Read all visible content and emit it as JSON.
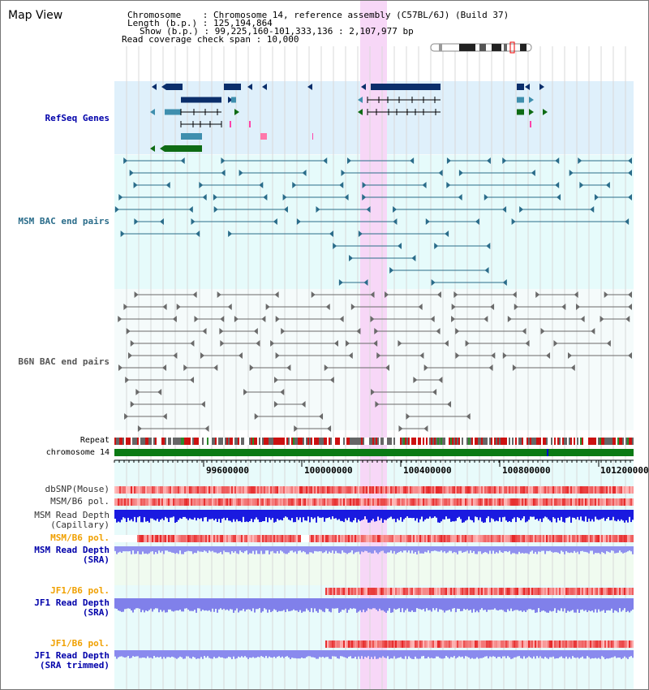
{
  "header": {
    "map_title": "Map View",
    "chromosome_row": "Chromosome    : Chromosome 14, reference assembly (C57BL/6J) (Build 37)",
    "length_row": "Length (b.p.) : 125,194,864",
    "show_row": "Show (b.p.) : 99,225,160-101,333,136 : 2,107,977 bp",
    "coverage_row": "Read coverage check span : 10,000"
  },
  "tracks": {
    "refseq": "RefSeq Genes",
    "msm_bac": "MSM BAC end pairs",
    "b6n_bac": "B6N BAC end pairs",
    "repeat": "Repeat",
    "chrom": "chromosome 14",
    "dbsnp": "dbSNP(Mouse)",
    "msm_b6_pol": "MSM/B6 pol.",
    "msm_depth_cap_1": "MSM Read Depth",
    "msm_depth_cap_2": "(Capillary)",
    "msm_b6_pol_sra": "MSM/B6 pol.",
    "msm_depth_sra_1": "MSM Read Depth",
    "msm_depth_sra_2": "(SRA)",
    "jf1_b6_pol": "JF1/B6 pol.",
    "jf1_depth_1": "JF1 Read Depth",
    "jf1_depth_2": "(SRA)",
    "jf1_b6_pol_trim": "JF1/B6 pol.",
    "jf1_depth_trim_1": "JF1 Read Depth",
    "jf1_depth_trim_2": "(SRA trimmed)"
  },
  "ruler": {
    "ticks": [
      "99600000",
      "100000000",
      "100400000",
      "100800000",
      "101200000"
    ]
  },
  "colors": {
    "refseq_bg": "#dff0fb",
    "bac_bg": "#e6fbfb",
    "highlight": "#f7d7f7",
    "gene_dark": "#0a2e6b",
    "gene_mid": "#3f8fae",
    "gene_green": "#0e6b14",
    "msm_bac": "#2a6c8a",
    "b6n_bac": "#6a6a6a",
    "chrom_bar": "#0b7a14",
    "orange_label": "#f0a000",
    "blue_label": "#0000aa"
  }
}
